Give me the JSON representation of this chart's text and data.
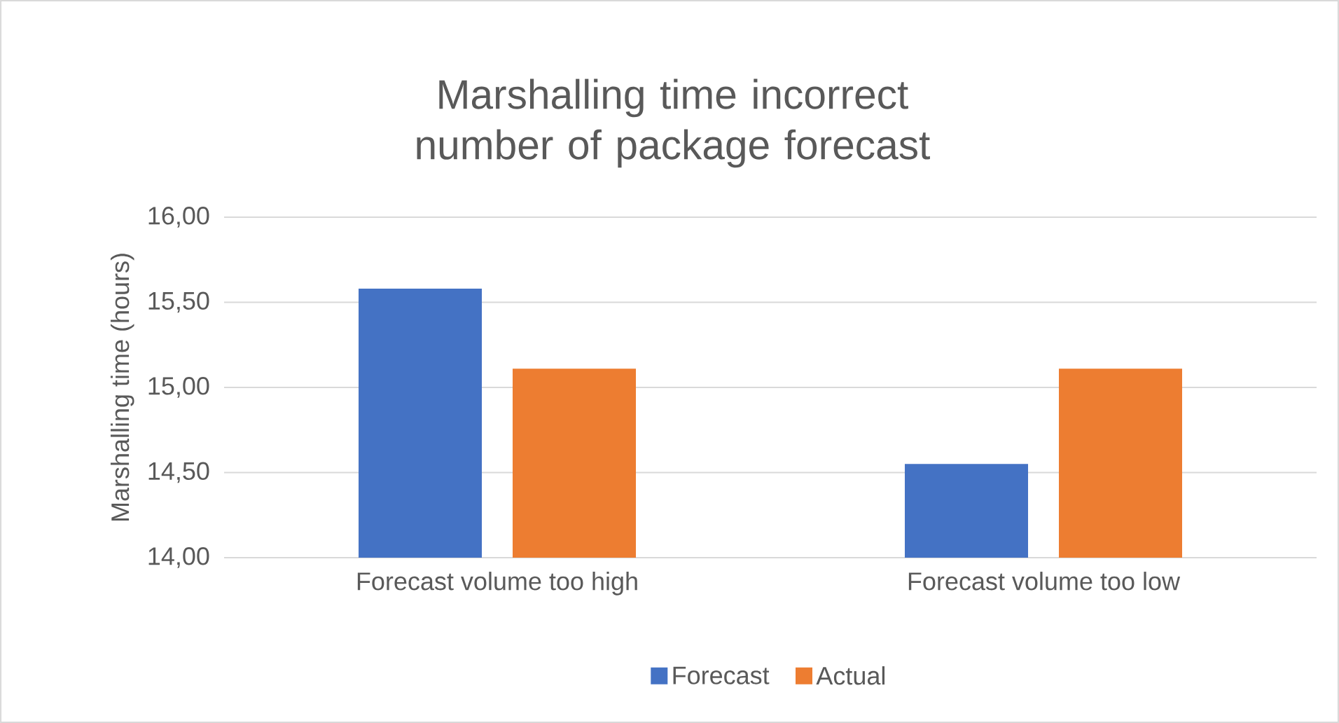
{
  "chart_data": {
    "type": "bar",
    "title": "Marshalling time incorrect number of package forecast",
    "ylabel": "Marshalling time (hours)",
    "categories": [
      "Forecast volume too high",
      "Forecast volume too low"
    ],
    "series": [
      {
        "name": "Forecast",
        "color": "#4472c4",
        "values": [
          15.58,
          14.55
        ]
      },
      {
        "name": "Actual",
        "color": "#ed7d31",
        "values": [
          15.11,
          15.11
        ]
      }
    ],
    "ylim": [
      14,
      16
    ],
    "yticks": [
      {
        "value": 14,
        "label": "14,00"
      },
      {
        "value": 14.5,
        "label": "14,50"
      },
      {
        "value": 15,
        "label": "15,00"
      },
      {
        "value": 15.5,
        "label": "15,50"
      },
      {
        "value": 16,
        "label": "16,00"
      }
    ],
    "grid": "y",
    "legend": "bottom"
  }
}
